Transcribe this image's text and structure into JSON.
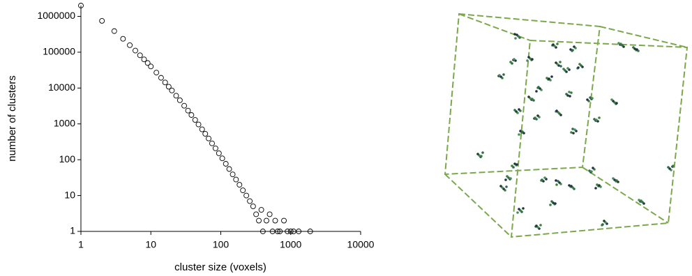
{
  "chart_data": {
    "type": "scatter",
    "x_label": "cluster size (voxels)",
    "y_label": "number of clusters",
    "log_x": true,
    "log_y": true,
    "marker": "open-circle",
    "color": "#000000",
    "xlim": [
      1,
      10000
    ],
    "xticks": [
      1,
      10,
      100,
      1000,
      10000
    ],
    "ylim": [
      1,
      2000000
    ],
    "yticks": [
      1,
      10,
      100,
      1000,
      10000,
      100000,
      1000000
    ],
    "x": [
      1,
      2,
      3,
      4,
      5,
      6,
      7,
      8,
      9,
      10,
      12,
      14,
      16,
      18,
      20,
      23,
      26,
      30,
      34,
      38,
      43,
      48,
      54,
      60,
      67,
      75,
      84,
      94,
      105,
      118,
      132,
      148,
      165,
      185,
      207,
      232,
      260,
      290,
      320,
      350,
      380,
      400,
      450,
      500,
      550,
      600,
      650,
      700,
      800,
      900,
      1000,
      1100,
      1300,
      1900
    ],
    "values": [
      2000000,
      750000,
      388000,
      236000,
      157000,
      111000,
      82000,
      63000,
      50000,
      40000,
      27000,
      19300,
      14300,
      10900,
      8550,
      6100,
      4560,
      3210,
      2350,
      1770,
      1290,
      964,
      705,
      530,
      391,
      286,
      208,
      151,
      109,
      77,
      55,
      39,
      28,
      20,
      14,
      10,
      7,
      5,
      3,
      2,
      4,
      1,
      2,
      3,
      1,
      2,
      1,
      1,
      2,
      1,
      1,
      1,
      1,
      1
    ]
  }
}
